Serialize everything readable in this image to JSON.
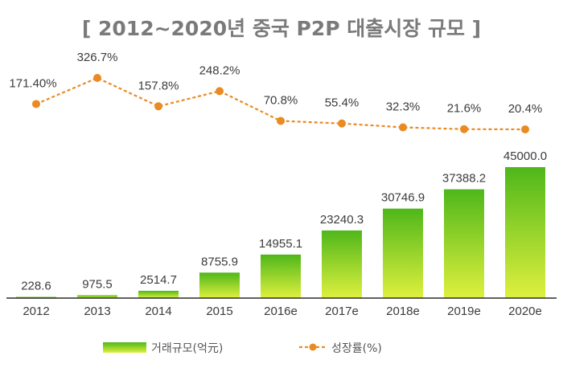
{
  "chart_data": {
    "type": "bar+line",
    "title": "[ 2012~2020년 중국 P2P 대출시장 규모 ]",
    "categories": [
      "2012",
      "2013",
      "2014",
      "2015",
      "2016e",
      "2017e",
      "2018e",
      "2019e",
      "2020e"
    ],
    "series": [
      {
        "name": "거래규모(억元)",
        "type": "bar",
        "values": [
          228.6,
          975.5,
          2514.7,
          8755.9,
          14955.1,
          23240.3,
          30746.9,
          37388.2,
          45000.0
        ],
        "labels": [
          "228.6",
          "975.5",
          "2514.7",
          "8755.9",
          "14955.1",
          "23240.3",
          "30746.9",
          "37388.2",
          "45000.0"
        ]
      },
      {
        "name": "성장률(%)",
        "type": "line",
        "values": [
          171.4,
          326.7,
          157.8,
          248.2,
          70.8,
          55.4,
          32.3,
          21.6,
          20.4
        ],
        "labels": [
          "171.40%",
          "326.7%",
          "157.8%",
          "248.2%",
          "70.8%",
          "55.4%",
          "32.3%",
          "21.6%",
          "20.4%"
        ]
      }
    ],
    "legend": [
      "거래규모(억元)",
      "성장률(%)"
    ],
    "legend_position": "bottom",
    "colors": {
      "bar_top": "#4fb71a",
      "bar_bottom": "#dff03e",
      "line": "#ea8a22",
      "axis": "#2b2b2b"
    }
  }
}
